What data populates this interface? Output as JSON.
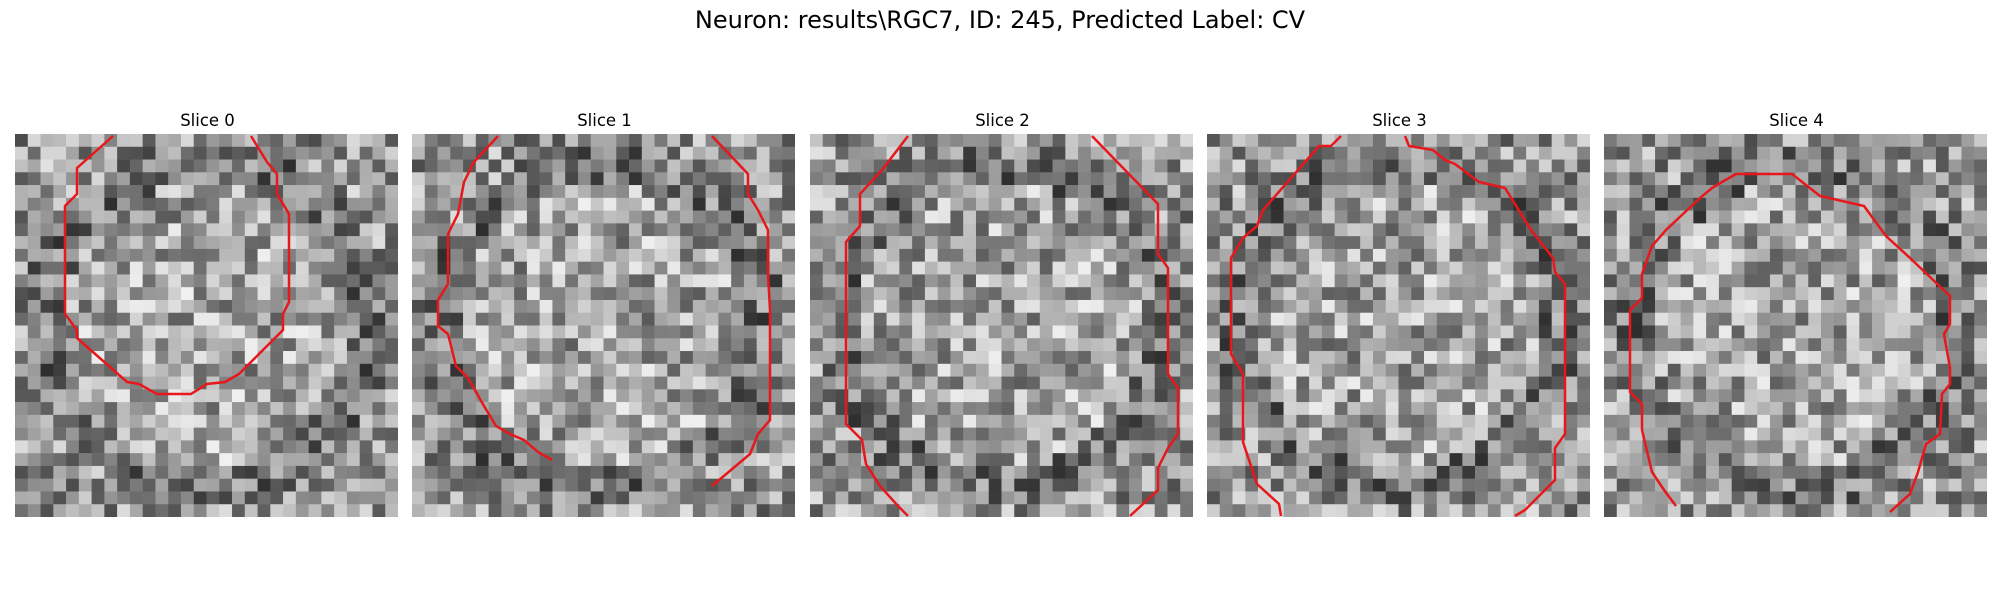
{
  "figure": {
    "title": "Neuron: results\\RGC7, ID: 245, Predicted Label: CV",
    "contour_color": "#e8171b",
    "grid_size": 30,
    "slices": [
      {
        "label": "Slice 0",
        "seed": 11
      },
      {
        "label": "Slice 1",
        "seed": 23
      },
      {
        "label": "Slice 2",
        "seed": 37
      },
      {
        "label": "Slice 3",
        "seed": 41
      },
      {
        "label": "Slice 4",
        "seed": 59
      }
    ]
  }
}
